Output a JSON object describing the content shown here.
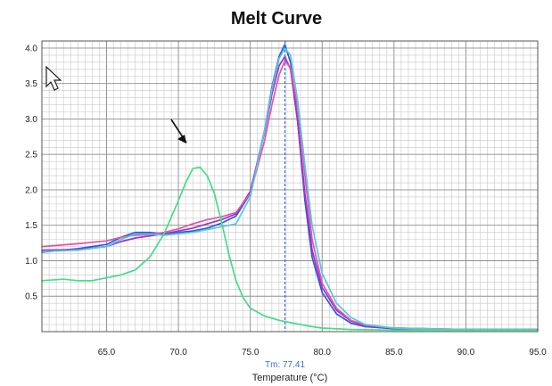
{
  "chart_data": {
    "type": "line",
    "title": "Melt Curve",
    "xlabel": "Temperature (°C)",
    "ylabel": "",
    "xlim": [
      60.5,
      95
    ],
    "ylim": [
      0,
      4.1
    ],
    "grid": true,
    "x_ticks": [
      "65.0",
      "70.0",
      "75.0",
      "80.0",
      "85.0",
      "90.0",
      "95.0"
    ],
    "y_ticks": [
      "0.5",
      "1.0",
      "1.5",
      "2.0",
      "2.5",
      "3.0",
      "3.5",
      "4.0"
    ],
    "tm_marker": {
      "x": 77.41,
      "label": "Tm: 77.41",
      "color": "#3a6fd8"
    },
    "series": [
      {
        "color": "#3355dd",
        "x": [
          60.5,
          63,
          65,
          66,
          67,
          68,
          69,
          70,
          71,
          72,
          73,
          74,
          75,
          76,
          76.5,
          77,
          77.4,
          77.8,
          78.3,
          78.8,
          79.3,
          80,
          81,
          82,
          83,
          85,
          90,
          95
        ],
        "y": [
          1.12,
          1.17,
          1.23,
          1.33,
          1.4,
          1.4,
          1.38,
          1.4,
          1.42,
          1.46,
          1.53,
          1.63,
          1.95,
          2.85,
          3.45,
          3.88,
          4.05,
          3.8,
          2.95,
          1.85,
          1.05,
          0.55,
          0.25,
          0.12,
          0.07,
          0.04,
          0.03,
          0.03
        ]
      },
      {
        "color": "#9933cc",
        "x": [
          60.5,
          63,
          65,
          66,
          67,
          68,
          69,
          70,
          71,
          72,
          73,
          74,
          75,
          76,
          76.5,
          77,
          77.4,
          77.8,
          78.3,
          78.8,
          79.3,
          80,
          81,
          82,
          83,
          85,
          90,
          95
        ],
        "y": [
          1.15,
          1.16,
          1.2,
          1.27,
          1.32,
          1.35,
          1.38,
          1.42,
          1.46,
          1.52,
          1.58,
          1.66,
          1.98,
          2.82,
          3.35,
          3.75,
          3.88,
          3.7,
          2.95,
          1.95,
          1.15,
          0.62,
          0.3,
          0.15,
          0.08,
          0.05,
          0.03,
          0.03
        ]
      },
      {
        "color": "#e055aa",
        "x": [
          60.5,
          63,
          65,
          66,
          67,
          68,
          69,
          70,
          71,
          72,
          73,
          74,
          75,
          76,
          76.5,
          77,
          77.4,
          77.8,
          78.3,
          78.8,
          79.3,
          80,
          81,
          82,
          83,
          85,
          90,
          95
        ],
        "y": [
          1.2,
          1.24,
          1.28,
          1.33,
          1.36,
          1.37,
          1.4,
          1.45,
          1.52,
          1.58,
          1.62,
          1.68,
          1.95,
          2.7,
          3.2,
          3.62,
          3.82,
          3.72,
          3.15,
          2.2,
          1.3,
          0.68,
          0.33,
          0.16,
          0.09,
          0.05,
          0.03,
          0.03
        ]
      },
      {
        "color": "#55c8e0",
        "x": [
          60.5,
          63,
          65,
          66,
          67,
          68,
          69,
          70,
          71,
          72,
          73,
          74,
          75,
          76,
          76.5,
          77,
          77.4,
          77.8,
          78.3,
          78.8,
          79.3,
          80,
          81,
          82,
          83,
          85,
          90,
          95
        ],
        "y": [
          1.13,
          1.15,
          1.2,
          1.3,
          1.38,
          1.38,
          1.36,
          1.38,
          1.4,
          1.44,
          1.48,
          1.52,
          1.9,
          2.85,
          3.42,
          3.85,
          4.0,
          3.9,
          3.25,
          2.35,
          1.5,
          0.82,
          0.4,
          0.2,
          0.1,
          0.05,
          0.03,
          0.03
        ]
      },
      {
        "color": "#44dd88",
        "x": [
          60.5,
          62,
          63,
          64,
          65,
          66,
          67,
          68,
          69,
          70,
          70.5,
          71,
          71.5,
          72,
          72.5,
          73,
          73.5,
          74,
          74.5,
          75,
          76,
          77,
          78,
          79,
          80,
          82,
          85,
          90,
          95
        ],
        "y": [
          0.72,
          0.74,
          0.72,
          0.72,
          0.76,
          0.8,
          0.87,
          1.05,
          1.38,
          1.85,
          2.1,
          2.3,
          2.32,
          2.2,
          1.95,
          1.55,
          1.1,
          0.72,
          0.48,
          0.33,
          0.22,
          0.16,
          0.12,
          0.08,
          0.05,
          0.03,
          0.02,
          0.02,
          0.02
        ]
      }
    ]
  }
}
